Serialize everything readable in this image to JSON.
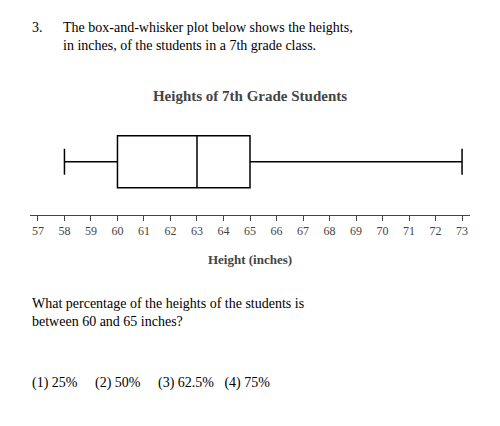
{
  "chart_data": {
    "type": "box",
    "title": "Heights of 7th Grade Students",
    "xlabel": "Height (inches)",
    "whisker_min": 58,
    "q1": 60,
    "median": 63,
    "q3": 65,
    "whisker_max": 73,
    "color": "#000000",
    "xlim": [
      56.7,
      73.3
    ],
    "xticks": [
      57,
      58,
      59,
      60,
      61,
      62,
      63,
      64,
      65,
      66,
      67,
      68,
      69,
      70,
      71,
      72,
      73
    ],
    "tick_labels": "x",
    "grid": false,
    "annotations": [
      "3.",
      "The box-and-whisker plot below shows the heights,\nin inches, of the students in a 7th grade class.",
      "What percentage of the heights of the students is\nbetween 60 and 65 inches?",
      "(1) 25%     (2) 50%     (3) 62.5%   (4) 75%"
    ]
  }
}
